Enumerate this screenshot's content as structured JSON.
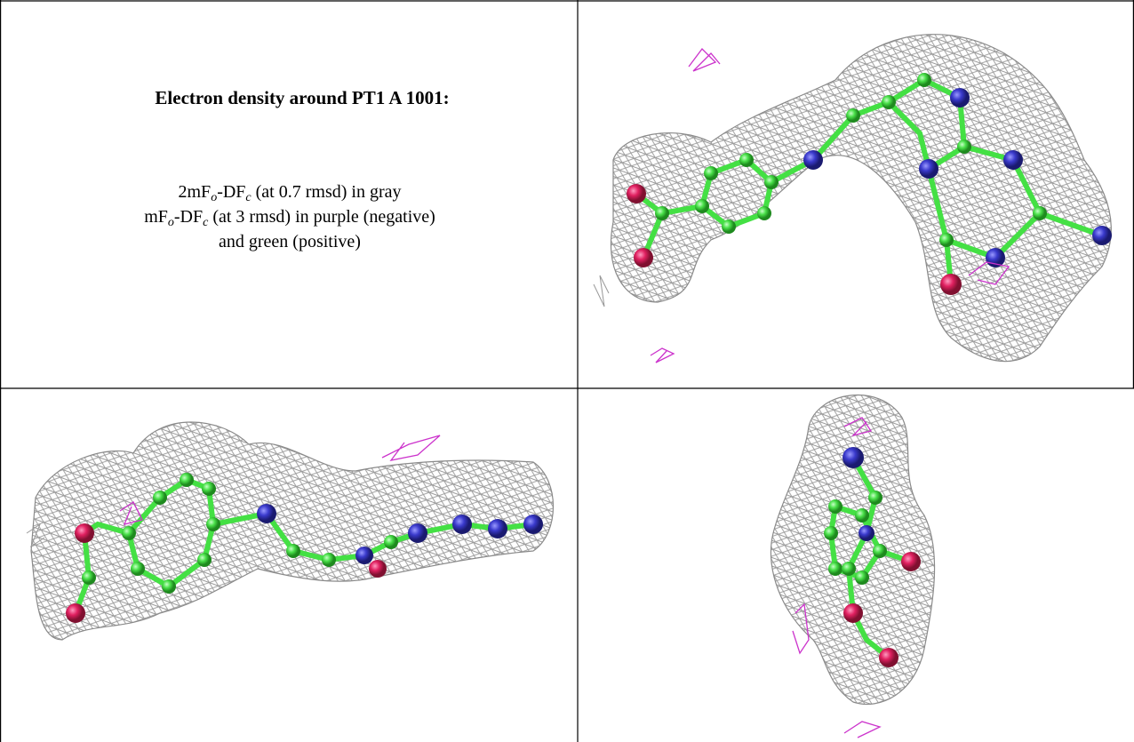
{
  "caption": {
    "title": "Electron density around PT1 A 1001:",
    "lines": [
      [
        {
          "main": "2mF"
        },
        {
          "sub": "o"
        },
        {
          "main": "-DF"
        },
        {
          "sub": "c"
        },
        {
          "main": " (at 0.7 rmsd) in gray"
        }
      ],
      [
        {
          "main": "mF"
        },
        {
          "sub": "o"
        },
        {
          "main": "-DF"
        },
        {
          "sub": "c"
        },
        {
          "main": " (at 3 rmsd) in purple (negative)"
        }
      ],
      [
        {
          "main": "and green (positive)"
        }
      ]
    ]
  }
}
